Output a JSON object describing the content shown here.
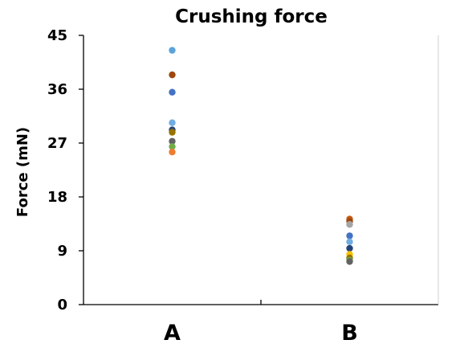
{
  "chart_data": {
    "type": "scatter",
    "title": "Crushing force",
    "xlabel": "",
    "ylabel": "Force (mN)",
    "categories": [
      "A",
      "B"
    ],
    "ylim": [
      0,
      45
    ],
    "yticks": [
      0,
      9,
      18,
      27,
      36,
      45
    ],
    "grid": false,
    "legend": "none",
    "points": [
      {
        "category": "A",
        "value": 42.5,
        "color": "#5BA3D9"
      },
      {
        "category": "A",
        "value": 38.4,
        "color": "#9E480E"
      },
      {
        "category": "A",
        "value": 35.5,
        "color": "#4472C4"
      },
      {
        "category": "A",
        "value": 30.4,
        "color": "#70ADE0"
      },
      {
        "category": "A",
        "value": 29.2,
        "color": "#264478"
      },
      {
        "category": "A",
        "value": 28.8,
        "color": "#997300"
      },
      {
        "category": "A",
        "value": 27.3,
        "color": "#636363"
      },
      {
        "category": "A",
        "value": 26.4,
        "color": "#70AD47"
      },
      {
        "category": "A",
        "value": 25.5,
        "color": "#ED7D31"
      },
      {
        "category": "B",
        "value": 14.3,
        "color": "#C55A11"
      },
      {
        "category": "B",
        "value": 13.9,
        "color": "#9E480E"
      },
      {
        "category": "B",
        "value": 13.4,
        "color": "#A5A5A5"
      },
      {
        "category": "B",
        "value": 11.5,
        "color": "#4472C4"
      },
      {
        "category": "B",
        "value": 10.5,
        "color": "#70ADE0"
      },
      {
        "category": "B",
        "value": 9.4,
        "color": "#264478"
      },
      {
        "category": "B",
        "value": 8.4,
        "color": "#FFC000"
      },
      {
        "category": "B",
        "value": 7.8,
        "color": "#997300"
      },
      {
        "category": "B",
        "value": 7.4,
        "color": "#70AD47"
      },
      {
        "category": "B",
        "value": 7.2,
        "color": "#636363"
      }
    ]
  }
}
